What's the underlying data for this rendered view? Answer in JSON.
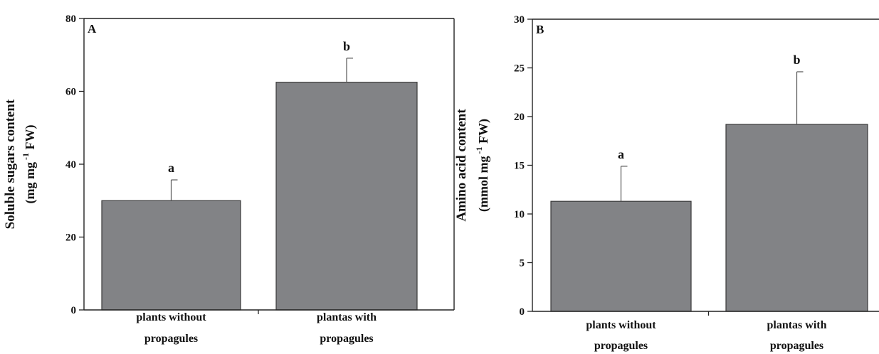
{
  "colors": {
    "bar_fill": "#828386",
    "bar_stroke": "#3a3a3a",
    "axis": "#222222",
    "error_bar": "#555555"
  },
  "chart_data": [
    {
      "type": "bar",
      "panel": "A",
      "categories": [
        [
          "plants without",
          "propagules"
        ],
        [
          "plantas with",
          "propagules"
        ]
      ],
      "values": [
        30,
        62.5
      ],
      "errors": [
        5.7,
        6.6
      ],
      "significance": [
        "a",
        "b"
      ],
      "ylabel": "Soluble sugars content",
      "yunit": {
        "pre": "(mg mg",
        "sup": "-1",
        "post": " FW)"
      },
      "ylim": [
        0,
        80
      ],
      "yticks": [
        0,
        20,
        40,
        60,
        80
      ],
      "grid": false,
      "legend": false
    },
    {
      "type": "bar",
      "panel": "B",
      "categories": [
        [
          "plants without",
          "propagules"
        ],
        [
          "plantas with",
          "propagules"
        ]
      ],
      "values": [
        11.3,
        19.2
      ],
      "errors": [
        3.6,
        5.4
      ],
      "significance": [
        "a",
        "b"
      ],
      "ylabel": "Amino acid content",
      "yunit": {
        "pre": "(mmol mg",
        "sup": "-1",
        "post": " FW)"
      },
      "ylim": [
        0,
        30
      ],
      "yticks": [
        0,
        5,
        10,
        15,
        20,
        25,
        30
      ],
      "grid": false,
      "legend": false
    }
  ]
}
